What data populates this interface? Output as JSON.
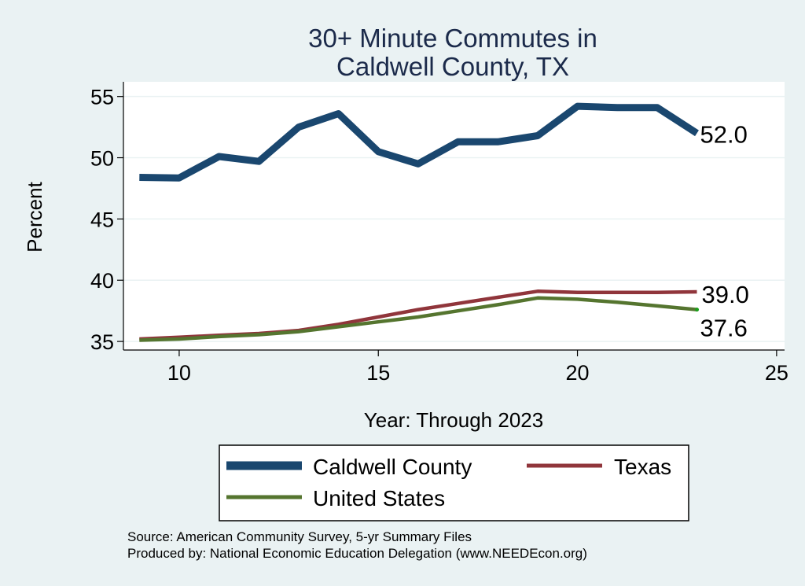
{
  "chart_data": {
    "type": "line",
    "title_lines": [
      "30+ Minute Commutes in",
      "Caldwell County, TX"
    ],
    "xlabel": "Year: Through 2023",
    "ylabel": "Percent",
    "xlim": [
      8.6,
      25.2
    ],
    "ylim": [
      34.3,
      56.2
    ],
    "xticks": [
      10,
      15,
      20,
      25
    ],
    "yticks": [
      35,
      40,
      45,
      50,
      55
    ],
    "grid": true,
    "legend_position": "bottom",
    "series": [
      {
        "name": "Caldwell County",
        "color": "#1a476f",
        "x": [
          9,
          10,
          11,
          12,
          13,
          14,
          15,
          16,
          17,
          18,
          19,
          20,
          21,
          22,
          23
        ],
        "values": [
          48.4,
          48.35,
          50.1,
          49.7,
          52.5,
          53.6,
          50.5,
          49.5,
          51.3,
          51.3,
          51.8,
          54.2,
          54.1,
          54.1,
          52.0
        ],
        "end_label": "52.0"
      },
      {
        "name": "Texas",
        "color": "#90353b",
        "x": [
          9,
          10,
          11,
          12,
          13,
          14,
          15,
          16,
          17,
          18,
          19,
          20,
          21,
          22,
          23
        ],
        "values": [
          35.2,
          35.35,
          35.5,
          35.65,
          35.9,
          36.4,
          37.0,
          37.6,
          38.1,
          38.6,
          39.1,
          39.0,
          39.0,
          39.0,
          39.05
        ],
        "end_label": "39.0"
      },
      {
        "name": "United States",
        "color": "#55752f",
        "x": [
          9,
          10,
          11,
          12,
          13,
          14,
          15,
          16,
          17,
          18,
          19,
          20,
          21,
          22,
          23
        ],
        "values": [
          35.1,
          35.2,
          35.4,
          35.55,
          35.8,
          36.2,
          36.6,
          37.0,
          37.5,
          38.0,
          38.55,
          38.45,
          38.2,
          37.9,
          37.6
        ],
        "end_label": "37.6"
      }
    ],
    "source_lines": [
      "Source: American Community Survey, 5-yr Summary Files",
      "Produced by: National Economic Education Delegation (www.NEEDEcon.org)"
    ]
  }
}
